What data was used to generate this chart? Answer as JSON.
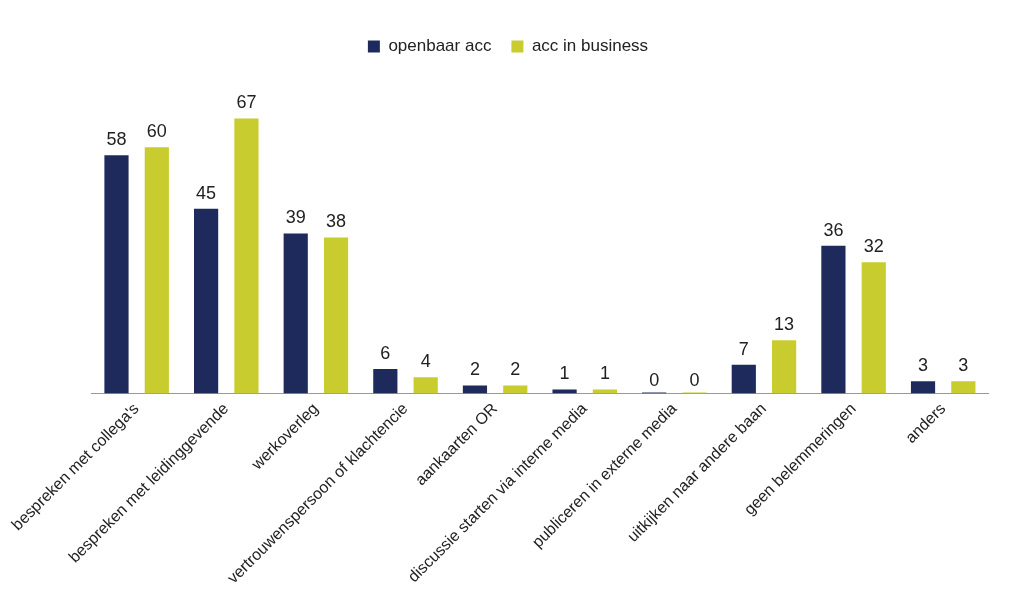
{
  "chart_data": {
    "type": "bar",
    "categories": [
      "bespreken met collega's",
      "bespreken met leidinggevende",
      "werkoverleg",
      "vertrouwenspersoon of klachtencie",
      "aankaarten OR",
      "discussie starten via interne media",
      "publiceren in externe media",
      "uitkijken naar andere baan",
      "geen belemmeringen",
      "anders"
    ],
    "series": [
      {
        "name": "openbaar acc",
        "color": "#1f2a5c",
        "values": [
          58,
          45,
          39,
          6,
          2,
          1,
          0,
          7,
          36,
          3
        ]
      },
      {
        "name": "acc in business",
        "color": "#c8cc2e",
        "values": [
          60,
          67,
          38,
          4,
          2,
          1,
          0,
          13,
          32,
          3
        ]
      }
    ],
    "data_labels": true,
    "legend": "top",
    "grid": false
  }
}
